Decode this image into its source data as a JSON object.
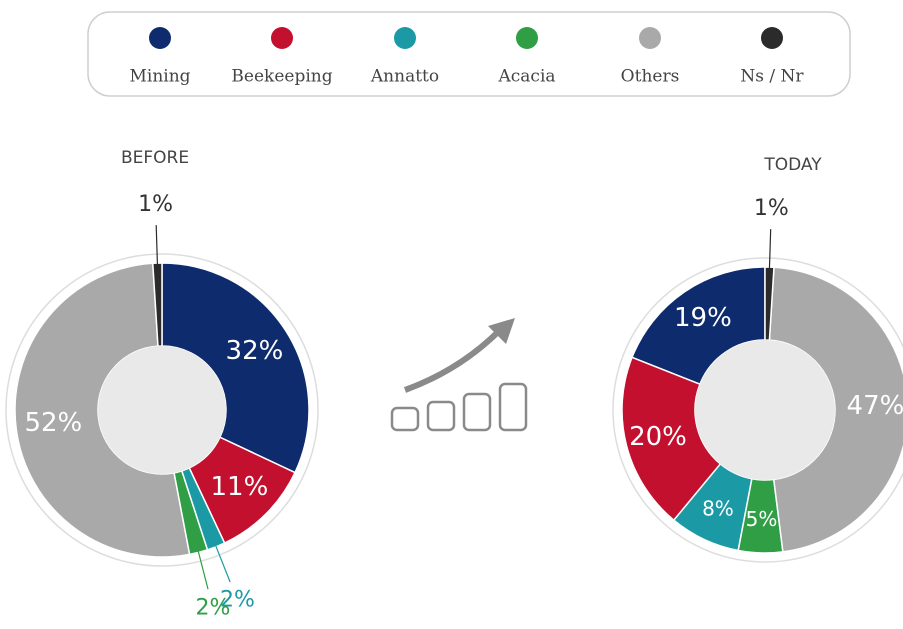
{
  "chart_data": [
    {
      "type": "pie",
      "title": "BEFORE",
      "direction": "clockwise",
      "categories": [
        "Mining",
        "Beekeeping",
        "Annatto",
        "Acacia",
        "Others",
        "Ns / Nr"
      ],
      "colors": [
        "#0e2b6e",
        "#c3102f",
        "#1b9aa6",
        "#2f9e44",
        "#a9a9a9",
        "#2b2b2b"
      ],
      "values": [
        32,
        11,
        2,
        2,
        52,
        1
      ],
      "value_labels": [
        "32%",
        "11%",
        "2%",
        "2%",
        "52%",
        "1%"
      ]
    },
    {
      "type": "pie",
      "title": "TODAY",
      "direction": "counterclockwise",
      "categories": [
        "Mining",
        "Beekeeping",
        "Annatto",
        "Acacia",
        "Others",
        "Ns / Nr"
      ],
      "colors": [
        "#0e2b6e",
        "#c3102f",
        "#1b9aa6",
        "#2f9e44",
        "#a9a9a9",
        "#2b2b2b"
      ],
      "values": [
        19,
        20,
        8,
        5,
        47,
        1
      ],
      "value_labels": [
        "19%",
        "20%",
        "8%",
        "5%",
        "47%",
        "1%"
      ]
    }
  ]
}
